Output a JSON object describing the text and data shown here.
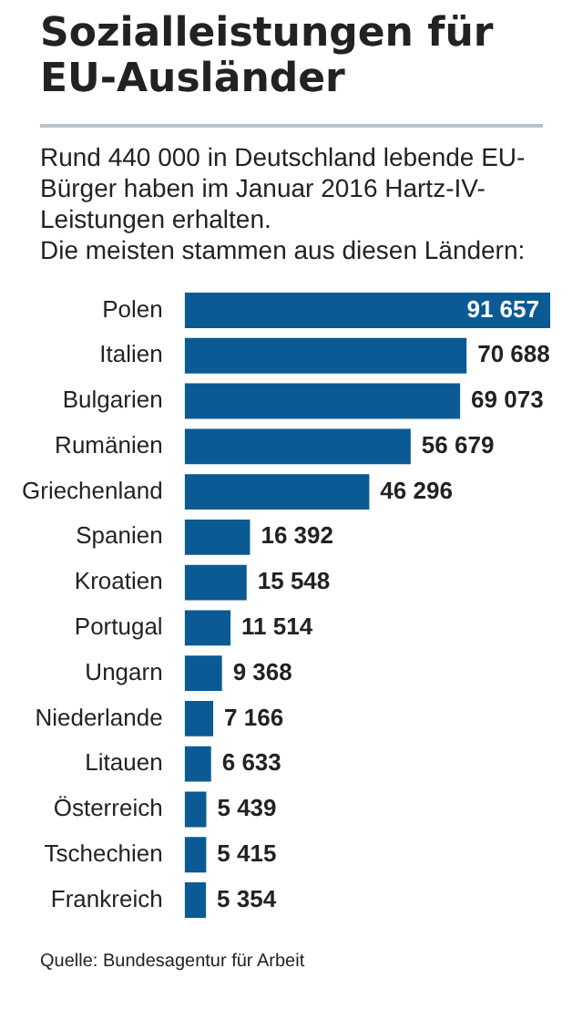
{
  "chart_data": {
    "type": "bar",
    "orientation": "horizontal",
    "title": "Sozialleistungen für EU-Ausländer",
    "subtitle": "Rund 440 000 in Deutschland lebende EU-Bürger haben im Januar 2016 Hartz-IV-Leistungen erhalten.\nDie meisten stammen aus diesen Ländern:",
    "categories": [
      "Polen",
      "Italien",
      "Bulgarien",
      "Rumänien",
      "Griechenland",
      "Spanien",
      "Kroatien",
      "Portugal",
      "Ungarn",
      "Niederlande",
      "Litauen",
      "Österreich",
      "Tschechien",
      "Frankreich"
    ],
    "values": [
      91657,
      70688,
      69073,
      56679,
      46296,
      16392,
      15548,
      11514,
      9368,
      7166,
      6633,
      5439,
      5415,
      5354
    ],
    "value_labels": [
      "91 657",
      "70 688",
      "69 073",
      "56 679",
      "46 296",
      "16 392",
      "15 548",
      "11 514",
      "9 368",
      "7 166",
      "6 633",
      "5 439",
      "5 415",
      "5 354"
    ],
    "color": "#0b5a94",
    "annotations": [
      "Quelle: Bundesagentur für Arbeit"
    ]
  }
}
